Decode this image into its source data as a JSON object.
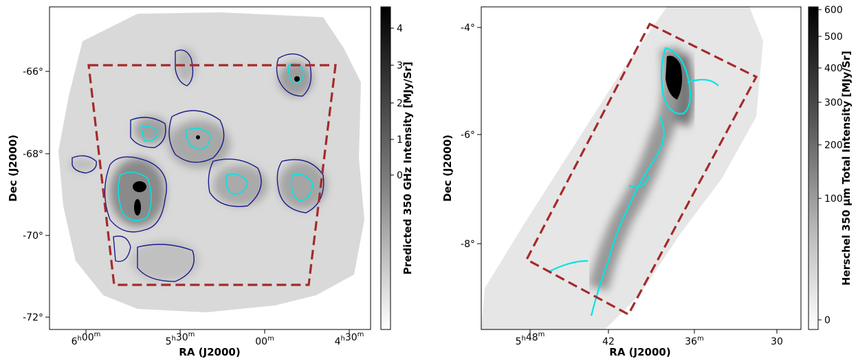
{
  "chart_data": [
    {
      "type": "heatmap",
      "xlabel": "RA (J2000)",
      "ylabel": "Dec (J2000)",
      "x_ticks": [
        {
          "h": "6",
          "hu": "h",
          "m": "00",
          "mu": "m"
        },
        {
          "h": "5",
          "hu": "h",
          "m": "30",
          "mu": "m"
        },
        {
          "h": "",
          "hu": "",
          "m": "00",
          "mu": "m"
        },
        {
          "h": "4",
          "hu": "h",
          "m": "30",
          "mu": "m"
        }
      ],
      "y_ticks": [
        "-66°",
        "-68°",
        "-70°",
        "-72°"
      ],
      "colorbar": {
        "label": "Predicted 350 GHz Intensity [MJy/Sr]",
        "ticks": [
          "4",
          "3",
          "2",
          "1",
          "0"
        ],
        "range": [
          -0.5,
          4.5
        ],
        "scale": "linear"
      },
      "colormap": "gray_r",
      "contours": [
        "navy",
        "cyan"
      ],
      "region": "dashed dark red trapezoid"
    },
    {
      "type": "heatmap",
      "xlabel": "RA (J2000)",
      "ylabel": "Dec (J2000)",
      "x_ticks": [
        {
          "h": "5",
          "hu": "h",
          "m": "48",
          "mu": "m"
        },
        {
          "h": "",
          "hu": "",
          "m": "42",
          "mu": ""
        },
        {
          "h": "",
          "hu": "",
          "m": "36",
          "mu": "m"
        },
        {
          "h": "",
          "hu": "",
          "m": "30",
          "mu": ""
        }
      ],
      "y_ticks": [
        "-4°",
        "-6°",
        "-8°"
      ],
      "colorbar": {
        "label": "Herschel 350 μm Total Intensity [MJy/Sr]",
        "ticks": [
          "600",
          "500",
          "400",
          "300",
          "200",
          "100",
          "0"
        ],
        "range": [
          0,
          600
        ],
        "scale": "nonlinear"
      },
      "colormap": "gray_r",
      "contours": [
        "white",
        "cyan"
      ],
      "region": "dashed dark red rotated rectangle"
    }
  ],
  "colors": {
    "region_outline": "#a52a2a",
    "contour_low": "#1a1a8c",
    "contour_high": "#00e5e5",
    "contour_white": "#ffffff"
  }
}
